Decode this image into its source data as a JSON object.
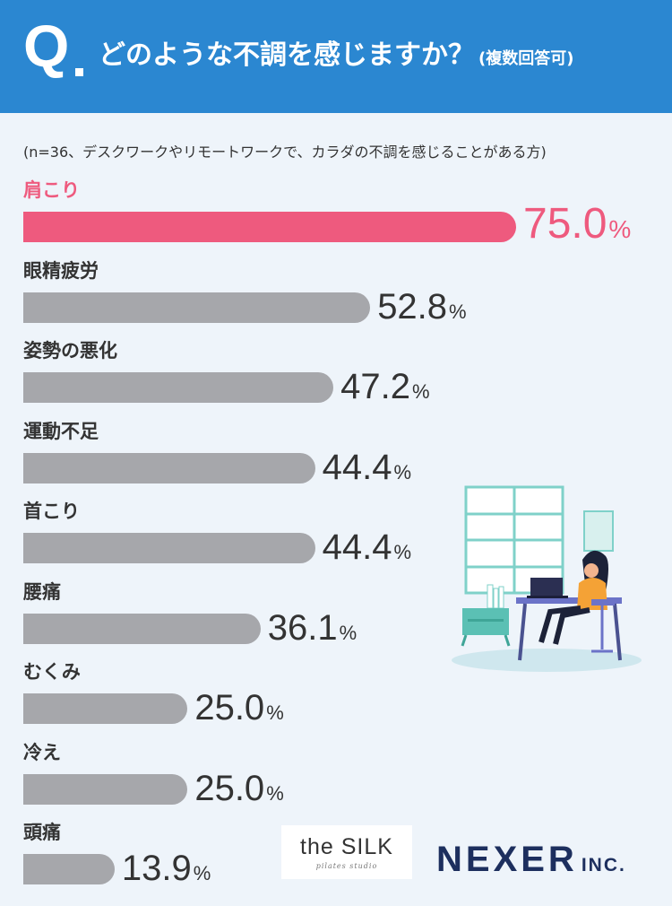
{
  "header": {
    "q_letter": "Q",
    "question": "どのような不調を感じますか？",
    "question_sub": "(複数回答可)"
  },
  "note": "(n=36、デスクワークやリモートワークで、カラダの不調を感じることがある方)",
  "chart_data": {
    "type": "bar",
    "orientation": "horizontal",
    "unit": "%",
    "categories": [
      "肩こり",
      "眼精疲労",
      "姿勢の悪化",
      "運動不足",
      "首こり",
      "腰痛",
      "むくみ",
      "冷え",
      "頭痛"
    ],
    "values": [
      75.0,
      52.8,
      47.2,
      44.4,
      44.4,
      36.1,
      25.0,
      25.0,
      13.9
    ],
    "value_labels": [
      "75.0",
      "52.8",
      "47.2",
      "44.4",
      "44.4",
      "36.1",
      "25.0",
      "25.0",
      "13.9"
    ],
    "highlight_index": 0,
    "xlim": [
      0,
      75
    ],
    "grid": false,
    "colors": {
      "highlight": "#ee5a7e",
      "default": "#a6a7ab"
    }
  },
  "logos": {
    "silk_main": "the SILK",
    "silk_sub": "pilates studio",
    "nexer_main": "NEXER",
    "nexer_inc": "INC."
  },
  "colors": {
    "header_bg": "#2b87d1",
    "page_bg": "#eef4fa",
    "nexer": "#1d2f5e"
  },
  "illustration": "woman-working-at-laptop"
}
